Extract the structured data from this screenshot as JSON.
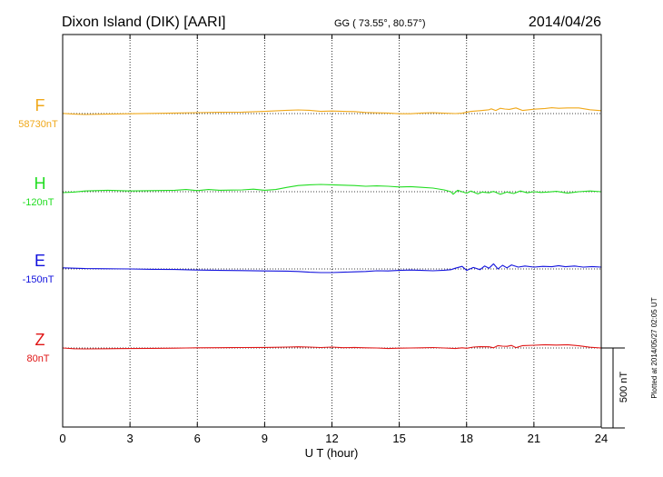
{
  "header": {
    "station": "Dixon Island (DIK)  [AARI]",
    "coords": "GG ( 73.55°,  80.57°)",
    "date": "2014/04/26"
  },
  "footer": {
    "plotted": "Plotted at 2014/05/27 02:05 UT"
  },
  "scale_bar": {
    "label": "500 nT",
    "nT": 500
  },
  "chart_data": {
    "type": "line",
    "xlabel": "U T (hour)",
    "xlim": [
      0,
      24
    ],
    "xticks": [
      0,
      3,
      6,
      9,
      12,
      15,
      18,
      21,
      24
    ],
    "xtick_labels": [
      "0",
      "3",
      "6",
      "9",
      "12",
      "15",
      "18",
      "21",
      "24"
    ],
    "grid": true,
    "units": "nT",
    "series": [
      {
        "name": "F",
        "offset_label": "58730nT",
        "baseline_nT": 58730,
        "color": "#f0a81a",
        "x": [
          0,
          0.5,
          1,
          2,
          3,
          4,
          5,
          6,
          7,
          8,
          9,
          10,
          10.5,
          11,
          11.5,
          12,
          12.5,
          13,
          13.5,
          14,
          14.5,
          15,
          15.5,
          16,
          16.5,
          17,
          17.5,
          17.8,
          18.2,
          18.6,
          19,
          19.1,
          19.3,
          19.5,
          19.7,
          19.9,
          20.2,
          20.5,
          21,
          21.5,
          21.8,
          22.1,
          22.5,
          23,
          23.5,
          24
        ],
        "y": [
          58732,
          58722,
          58717,
          58722,
          58727,
          58732,
          58737,
          58742,
          58747,
          58750,
          58760,
          58775,
          58780,
          58775,
          58760,
          58765,
          58760,
          58757,
          58745,
          58740,
          58737,
          58727,
          58727,
          58737,
          58742,
          58735,
          58730,
          58735,
          58760,
          58770,
          58782,
          58795,
          58772,
          58802,
          58792,
          58787,
          58807,
          58772,
          58790,
          58800,
          58810,
          58802,
          58807,
          58808,
          58782,
          58770
        ]
      },
      {
        "name": "H",
        "offset_label": "-120nT",
        "baseline_nT": -120,
        "color": "#22dd22",
        "x": [
          0,
          0.5,
          1,
          2,
          3,
          4,
          5,
          5.5,
          6,
          6.5,
          7,
          8,
          8.5,
          9,
          9.5,
          10,
          10.5,
          11,
          11.5,
          12,
          12.5,
          13,
          13.5,
          14,
          14.5,
          15,
          15.5,
          16,
          16.5,
          17,
          17.3,
          17.4,
          17.6,
          17.8,
          18,
          18.2,
          18.5,
          18.7,
          19,
          19.2,
          19.5,
          19.8,
          20.1,
          20.4,
          20.7,
          21,
          21.3,
          21.6,
          22,
          22.5,
          23,
          23.5,
          24
        ],
        "y": [
          -132,
          -125,
          -110,
          -100,
          -110,
          -105,
          -100,
          -90,
          -105,
          -90,
          -100,
          -95,
          -85,
          -100,
          -90,
          -60,
          -35,
          -25,
          -20,
          -25,
          -30,
          -35,
          -45,
          -40,
          -45,
          -55,
          -50,
          -60,
          -70,
          -95,
          -120,
          -155,
          -100,
          -120,
          -140,
          -110,
          -150,
          -125,
          -135,
          -115,
          -155,
          -125,
          -145,
          -110,
          -135,
          -120,
          -130,
          -125,
          -115,
          -140,
          -120,
          -110,
          -120
        ]
      },
      {
        "name": "E",
        "offset_label": "-150nT",
        "baseline_nT": -150,
        "color": "#1111dd",
        "x": [
          0,
          0.5,
          1,
          2,
          3,
          4,
          5,
          6,
          7,
          8,
          9,
          10,
          10.5,
          11,
          11.5,
          12,
          12.5,
          13,
          13.5,
          14,
          14.5,
          15,
          15.5,
          16,
          16.5,
          17,
          17.3,
          17.5,
          17.8,
          18,
          18.3,
          18.6,
          18.8,
          19,
          19.2,
          19.4,
          19.6,
          19.8,
          20,
          20.3,
          20.6,
          21,
          21.4,
          21.8,
          22.1,
          22.4,
          22.8,
          23.2,
          23.6,
          24
        ],
        "y": [
          -135,
          -140,
          -145,
          -148,
          -150,
          -155,
          -158,
          -165,
          -170,
          -172,
          -178,
          -180,
          -185,
          -195,
          -200,
          -200,
          -195,
          -190,
          -185,
          -175,
          -178,
          -170,
          -165,
          -170,
          -175,
          -168,
          -160,
          -140,
          -115,
          -170,
          -130,
          -160,
          -110,
          -140,
          -80,
          -150,
          -100,
          -135,
          -95,
          -125,
          -110,
          -125,
          -115,
          -120,
          -105,
          -120,
          -110,
          -125,
          -118,
          -125
        ]
      },
      {
        "name": "Z",
        "offset_label": "80nT",
        "baseline_nT": 80,
        "color": "#e01515",
        "x": [
          0,
          0.5,
          1,
          2,
          3,
          4,
          5,
          5.5,
          6,
          7,
          8,
          9,
          10,
          10.5,
          11,
          11.5,
          12,
          12.5,
          13,
          13.5,
          14,
          14.5,
          15,
          15.5,
          16,
          16.5,
          17,
          17.5,
          17.8,
          18,
          18.3,
          18.6,
          19,
          19.2,
          19.4,
          19.6,
          19.8,
          20,
          20.2,
          20.5,
          21,
          21.5,
          22,
          22.5,
          23,
          23.5,
          24
        ],
        "y": [
          80,
          70,
          68,
          70,
          72,
          75,
          77,
          80,
          82,
          84,
          86,
          88,
          92,
          96,
          92,
          86,
          92,
          84,
          88,
          82,
          80,
          72,
          77,
          80,
          82,
          86,
          80,
          72,
          82,
          76,
          92,
          97,
          96,
          82,
          112,
          105,
          102,
          115,
          85,
          112,
          118,
          125,
          120,
          125,
          110,
          90,
          80
        ]
      }
    ]
  }
}
